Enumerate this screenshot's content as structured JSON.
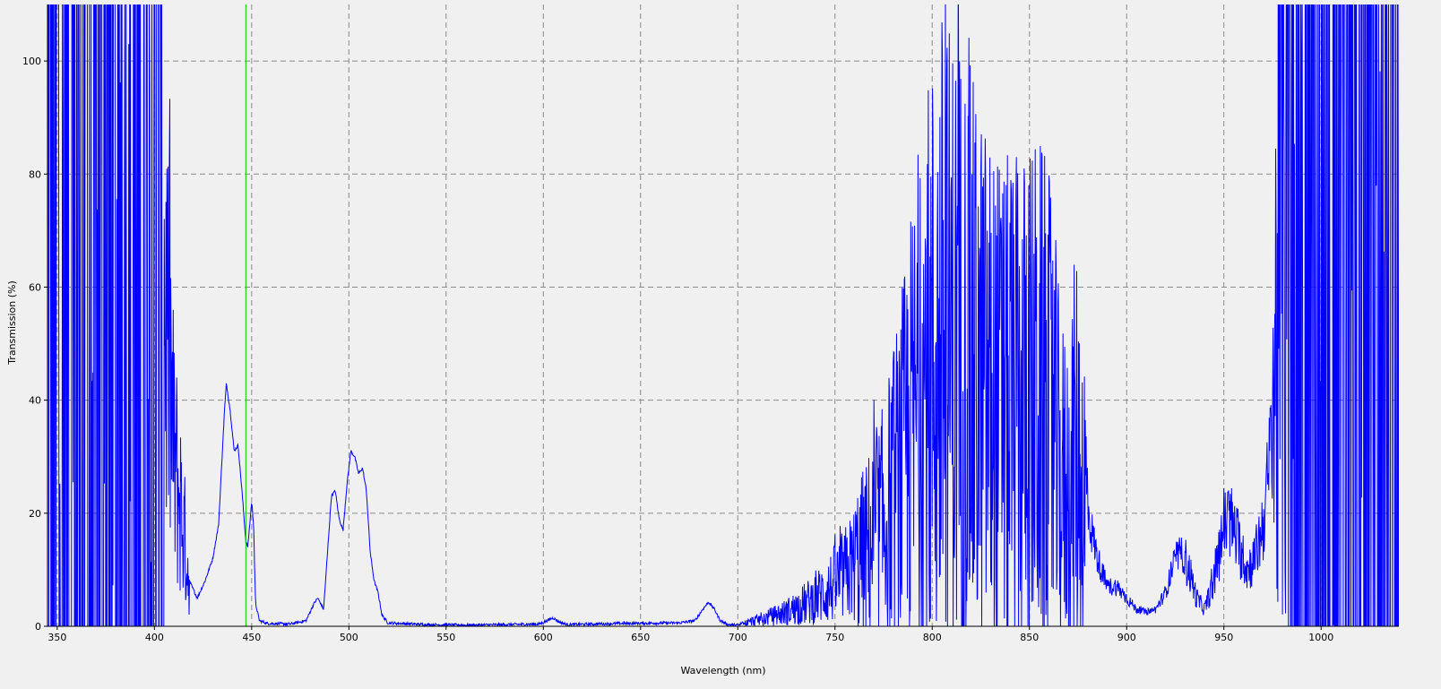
{
  "chart_data": {
    "type": "line",
    "title": "",
    "xlabel": "Wavelength (nm)",
    "ylabel": "Transmission (%)",
    "xlim": [
      345,
      1040
    ],
    "ylim": [
      0,
      110
    ],
    "grid": true,
    "x_ticks": [
      350,
      400,
      450,
      500,
      550,
      600,
      650,
      700,
      750,
      800,
      850,
      900,
      950,
      1000
    ],
    "y_ticks": [
      0,
      20,
      40,
      60,
      80,
      100
    ],
    "x_tick_labels": [
      "350",
      "400",
      "450",
      "500",
      "550",
      "600",
      "650",
      "700",
      "750",
      "800",
      "850",
      "900",
      "950",
      "1000"
    ],
    "y_tick_labels": [
      "0",
      "20",
      "40",
      "60",
      "80",
      "100"
    ],
    "marker_line": {
      "x": 447,
      "color": "#00cc00"
    },
    "series": [
      {
        "color": "#0000ff",
        "baseline_points": [
          [
            405,
            60
          ],
          [
            408,
            45
          ],
          [
            410,
            30
          ],
          [
            414,
            20
          ],
          [
            418,
            8
          ],
          [
            422,
            5
          ],
          [
            426,
            8
          ],
          [
            430,
            12
          ],
          [
            433,
            18
          ],
          [
            436,
            38
          ],
          [
            437,
            43
          ],
          [
            439,
            38
          ],
          [
            441,
            31
          ],
          [
            443,
            32
          ],
          [
            445,
            24
          ],
          [
            447,
            15
          ],
          [
            448,
            14
          ],
          [
            450,
            22
          ],
          [
            451,
            18
          ],
          [
            452,
            4
          ],
          [
            454,
            1
          ],
          [
            458,
            0.5
          ],
          [
            470,
            0.4
          ],
          [
            478,
            1
          ],
          [
            482,
            4
          ],
          [
            484,
            5
          ],
          [
            487,
            3
          ],
          [
            489,
            13
          ],
          [
            491,
            23
          ],
          [
            493,
            24
          ],
          [
            495,
            19
          ],
          [
            497,
            17
          ],
          [
            499,
            25
          ],
          [
            501,
            31
          ],
          [
            503,
            30
          ],
          [
            505,
            27
          ],
          [
            507,
            28
          ],
          [
            509,
            24
          ],
          [
            511,
            13
          ],
          [
            513,
            8
          ],
          [
            515,
            6
          ],
          [
            517,
            2
          ],
          [
            520,
            0.6
          ],
          [
            540,
            0.3
          ],
          [
            560,
            0.2
          ],
          [
            580,
            0.3
          ],
          [
            598,
            0.4
          ],
          [
            602,
            1
          ],
          [
            605,
            1.5
          ],
          [
            608,
            0.8
          ],
          [
            612,
            0.3
          ],
          [
            640,
            0.5
          ],
          [
            670,
            0.6
          ],
          [
            678,
            1
          ],
          [
            682,
            3
          ],
          [
            685,
            4.3
          ],
          [
            688,
            3
          ],
          [
            691,
            1
          ],
          [
            695,
            0.3
          ],
          [
            700,
            0.2
          ],
          [
            705,
            0.7
          ],
          [
            715,
            1.5
          ],
          [
            725,
            2.5
          ],
          [
            735,
            4
          ],
          [
            745,
            6
          ],
          [
            755,
            9
          ],
          [
            765,
            13
          ],
          [
            775,
            18
          ],
          [
            785,
            28
          ],
          [
            795,
            42
          ],
          [
            805,
            50
          ],
          [
            815,
            48
          ],
          [
            825,
            42
          ],
          [
            835,
            38
          ],
          [
            845,
            38
          ],
          [
            855,
            40
          ],
          [
            862,
            35
          ],
          [
            866,
            25
          ],
          [
            870,
            24
          ],
          [
            874,
            31
          ],
          [
            876,
            28
          ],
          [
            880,
            20
          ],
          [
            885,
            12
          ],
          [
            890,
            7
          ],
          [
            895,
            7
          ],
          [
            900,
            5
          ],
          [
            905,
            3
          ],
          [
            910,
            2.5
          ],
          [
            915,
            3
          ],
          [
            920,
            6
          ],
          [
            925,
            12
          ],
          [
            928,
            13
          ],
          [
            932,
            10
          ],
          [
            936,
            5
          ],
          [
            940,
            3
          ],
          [
            945,
            8
          ],
          [
            950,
            18
          ],
          [
            953,
            19
          ],
          [
            958,
            14
          ],
          [
            962,
            10
          ],
          [
            966,
            12
          ],
          [
            970,
            18
          ],
          [
            973,
            26
          ],
          [
            977,
            50
          ],
          [
            980,
            80
          ]
        ],
        "noisy_regions": [
          {
            "x": [
              345,
              405
            ],
            "mode": "saturated",
            "low": -5,
            "high": 115
          },
          {
            "x": [
              405,
              418
            ],
            "mode": "ratio",
            "amp": 0.5
          },
          {
            "x": [
              700,
              760
            ],
            "mode": "ratio",
            "amp": 0.6
          },
          {
            "x": [
              760,
              880
            ],
            "mode": "ratio",
            "amp": 0.75
          },
          {
            "x": [
              880,
              930
            ],
            "mode": "ratio",
            "amp": 0.15
          },
          {
            "x": [
              930,
              975
            ],
            "mode": "ratio",
            "amp": 0.25
          },
          {
            "x": [
              975,
              982
            ],
            "mode": "ratio",
            "amp": 0.7
          },
          {
            "x": [
              982,
              1040
            ],
            "mode": "saturated",
            "low": -5,
            "high": 115
          }
        ]
      }
    ]
  }
}
